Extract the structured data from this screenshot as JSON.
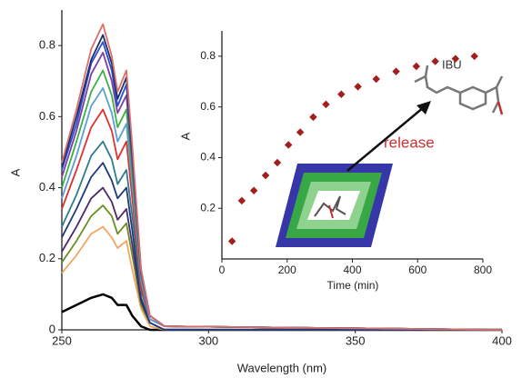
{
  "chart_data": [
    {
      "type": "line",
      "x_label": "Wavelength (nm)",
      "y_label": "A",
      "x": [
        250,
        255,
        260,
        264,
        267,
        269,
        272,
        274,
        277,
        280,
        285,
        400
      ],
      "xlim": [
        250,
        400
      ],
      "xticks": [
        250,
        300,
        350,
        400
      ],
      "ylim": [
        0,
        0.9
      ],
      "yticks": [
        0,
        0.2,
        0.4,
        0.6,
        0.8
      ],
      "series": [
        {
          "color": "#000000",
          "values": [
            0.05,
            0.07,
            0.09,
            0.1,
            0.09,
            0.07,
            0.07,
            0.04,
            0.01,
            0,
            0,
            0
          ]
        },
        {
          "color": "#f4a460",
          "values": [
            0.16,
            0.21,
            0.27,
            0.29,
            0.26,
            0.23,
            0.25,
            0.17,
            0.06,
            0.01,
            0,
            0
          ]
        },
        {
          "color": "#6b8e23",
          "values": [
            0.19,
            0.25,
            0.32,
            0.35,
            0.32,
            0.27,
            0.3,
            0.21,
            0.07,
            0.02,
            0,
            0
          ]
        },
        {
          "color": "#4b2a6e",
          "values": [
            0.22,
            0.29,
            0.37,
            0.4,
            0.36,
            0.31,
            0.34,
            0.24,
            0.08,
            0.02,
            0,
            0
          ]
        },
        {
          "color": "#1f3a7a",
          "values": [
            0.26,
            0.34,
            0.43,
            0.47,
            0.42,
            0.37,
            0.4,
            0.28,
            0.09,
            0.02,
            0,
            0
          ]
        },
        {
          "color": "#2e7d8c",
          "values": [
            0.29,
            0.38,
            0.49,
            0.53,
            0.48,
            0.41,
            0.45,
            0.32,
            0.11,
            0.03,
            0.01,
            0
          ]
        },
        {
          "color": "#e03030",
          "values": [
            0.34,
            0.45,
            0.57,
            0.62,
            0.56,
            0.48,
            0.53,
            0.37,
            0.12,
            0.03,
            0.01,
            0
          ]
        },
        {
          "color": "#5aa0d8",
          "values": [
            0.37,
            0.49,
            0.63,
            0.68,
            0.61,
            0.53,
            0.58,
            0.41,
            0.14,
            0.03,
            0.01,
            0
          ]
        },
        {
          "color": "#3cb043",
          "values": [
            0.4,
            0.53,
            0.67,
            0.73,
            0.66,
            0.57,
            0.62,
            0.44,
            0.15,
            0.04,
            0.01,
            0
          ]
        },
        {
          "color": "#7b3fa0",
          "values": [
            0.43,
            0.56,
            0.72,
            0.78,
            0.7,
            0.61,
            0.66,
            0.47,
            0.16,
            0.04,
            0.01,
            0
          ]
        },
        {
          "color": "#2f4fd0",
          "values": [
            0.45,
            0.58,
            0.75,
            0.81,
            0.73,
            0.63,
            0.69,
            0.49,
            0.16,
            0.04,
            0.01,
            0
          ]
        },
        {
          "color": "#1c2f6b",
          "values": [
            0.46,
            0.6,
            0.76,
            0.83,
            0.75,
            0.65,
            0.71,
            0.5,
            0.17,
            0.04,
            0.01,
            0
          ]
        },
        {
          "color": "#d9706a",
          "values": [
            0.47,
            0.62,
            0.79,
            0.86,
            0.77,
            0.67,
            0.73,
            0.52,
            0.17,
            0.04,
            0.01,
            0
          ]
        }
      ]
    },
    {
      "type": "scatter",
      "x_label": "Time (min)",
      "y_label": "A",
      "color": "#a31f1f",
      "x": [
        31,
        61,
        98,
        134,
        170,
        204,
        240,
        280,
        319,
        366,
        417,
        473,
        534,
        596,
        654,
        716,
        774
      ],
      "values": [
        0.07,
        0.23,
        0.27,
        0.33,
        0.38,
        0.45,
        0.5,
        0.56,
        0.61,
        0.65,
        0.68,
        0.71,
        0.74,
        0.76,
        0.78,
        0.79,
        0.8
      ],
      "xlim": [
        0,
        800
      ],
      "xticks": [
        0,
        200,
        400,
        600,
        800
      ],
      "ylim": [
        0,
        0.9
      ],
      "yticks": [
        0.2,
        0.4,
        0.6,
        0.8
      ],
      "annotations": [
        "IBU",
        "release"
      ]
    }
  ]
}
